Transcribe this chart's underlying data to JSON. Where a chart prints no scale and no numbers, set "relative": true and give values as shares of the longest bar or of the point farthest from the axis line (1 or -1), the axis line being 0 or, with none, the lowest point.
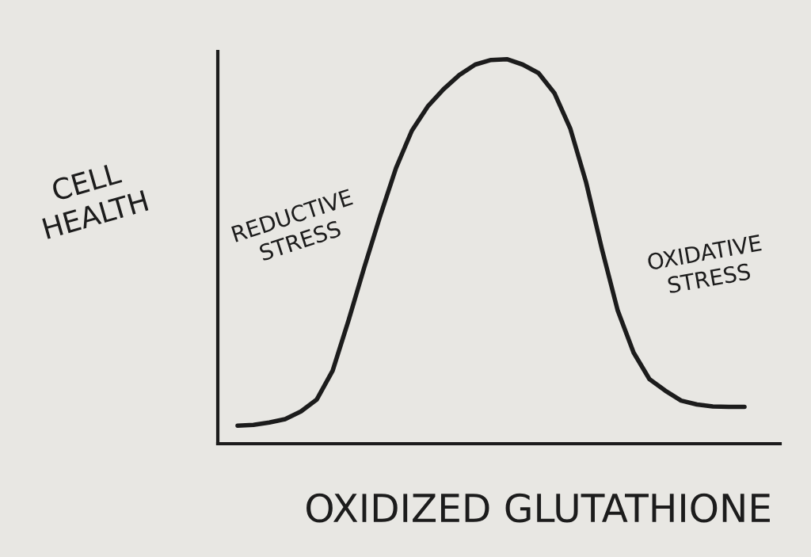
{
  "chart_data": {
    "type": "line",
    "xlabel": "OXIDIZED GLUTATHIONE",
    "ylabel": "CELL\nHEALTH",
    "annotations": [
      "REDUCTIVE\nSTRESS",
      "OXIDATIVE\nSTRESS"
    ],
    "categories": [
      null,
      null,
      null,
      null,
      null,
      null,
      null,
      null,
      null,
      null,
      null,
      null,
      null,
      null,
      null,
      null,
      null,
      null,
      null,
      null,
      null,
      null,
      null,
      null,
      null,
      null,
      null,
      null,
      null,
      null,
      null,
      null,
      null
    ],
    "relative": true,
    "line_style": "solid",
    "series": [
      {
        "color": "#1c1c1c",
        "values": [
          0.047,
          0.049,
          0.055,
          0.064,
          0.084,
          0.115,
          0.19,
          0.32,
          0.459,
          0.592,
          0.717,
          0.814,
          0.877,
          0.922,
          0.959,
          0.986,
          0.998,
          1,
          0.986,
          0.964,
          0.912,
          0.82,
          0.68,
          0.506,
          0.346,
          0.237,
          0.168,
          0.138,
          0.112,
          0.102,
          0.097,
          0.096,
          0.096
        ]
      }
    ]
  }
}
